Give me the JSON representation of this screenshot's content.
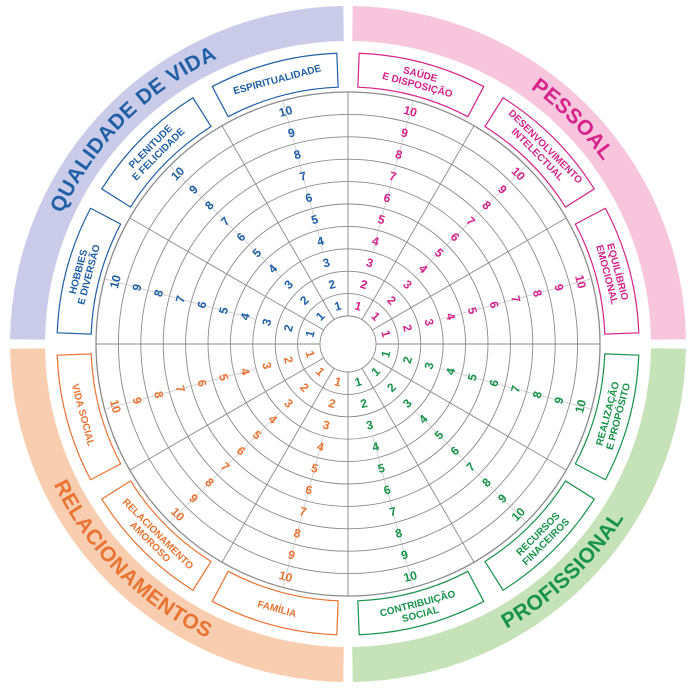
{
  "quadrants": [
    {
      "key": "qualidade",
      "title": "QUALIDADE DE VIDA",
      "text_color": "#1f5fa6",
      "band_color": "#c9cbe8"
    },
    {
      "key": "pessoal",
      "title": "PESSOAL",
      "text_color": "#d6228a",
      "band_color": "#f8c6dc"
    },
    {
      "key": "profissional",
      "title": "PROFISSIONAL",
      "text_color": "#17934b",
      "band_color": "#c5e2b8"
    },
    {
      "key": "relacionamentos",
      "title": "RELACIONAMENTOS",
      "text_color": "#ea7332",
      "band_color": "#f9ceb0"
    }
  ],
  "areas": [
    {
      "lines": [
        "SAÚDE",
        "E DISPOSIÇÃO"
      ],
      "quadrant": "pessoal"
    },
    {
      "lines": [
        "DESENVOLVIMENTO",
        "INTELECTUAL"
      ],
      "quadrant": "pessoal"
    },
    {
      "lines": [
        "EQUILÍBRIO",
        "EMOCIONAL"
      ],
      "quadrant": "pessoal"
    },
    {
      "lines": [
        "REALIZAÇÃO",
        "E PROPÓSITO"
      ],
      "quadrant": "profissional"
    },
    {
      "lines": [
        "RECURSOS",
        "FINACEIROS"
      ],
      "quadrant": "profissional"
    },
    {
      "lines": [
        "CONTRIBUIÇÃO",
        "SOCIAL"
      ],
      "quadrant": "profissional"
    },
    {
      "lines": [
        "FAMÍLIA"
      ],
      "quadrant": "relacionamentos"
    },
    {
      "lines": [
        "RELACIONAMENTO",
        "AMOROSO"
      ],
      "quadrant": "relacionamentos"
    },
    {
      "lines": [
        "VIDA SOCIAL"
      ],
      "quadrant": "relacionamentos"
    },
    {
      "lines": [
        "HOBBIES",
        "E DIVERSÃO"
      ],
      "quadrant": "qualidade"
    },
    {
      "lines": [
        "PLENITUDE",
        "E FELICIDADE"
      ],
      "quadrant": "qualidade"
    },
    {
      "lines": [
        "ESPIRITUALIDADE"
      ],
      "quadrant": "qualidade"
    }
  ],
  "scale": [
    "1",
    "2",
    "3",
    "4",
    "5",
    "6",
    "7",
    "8",
    "9",
    "10"
  ],
  "grid_color": "#8a8a8a"
}
